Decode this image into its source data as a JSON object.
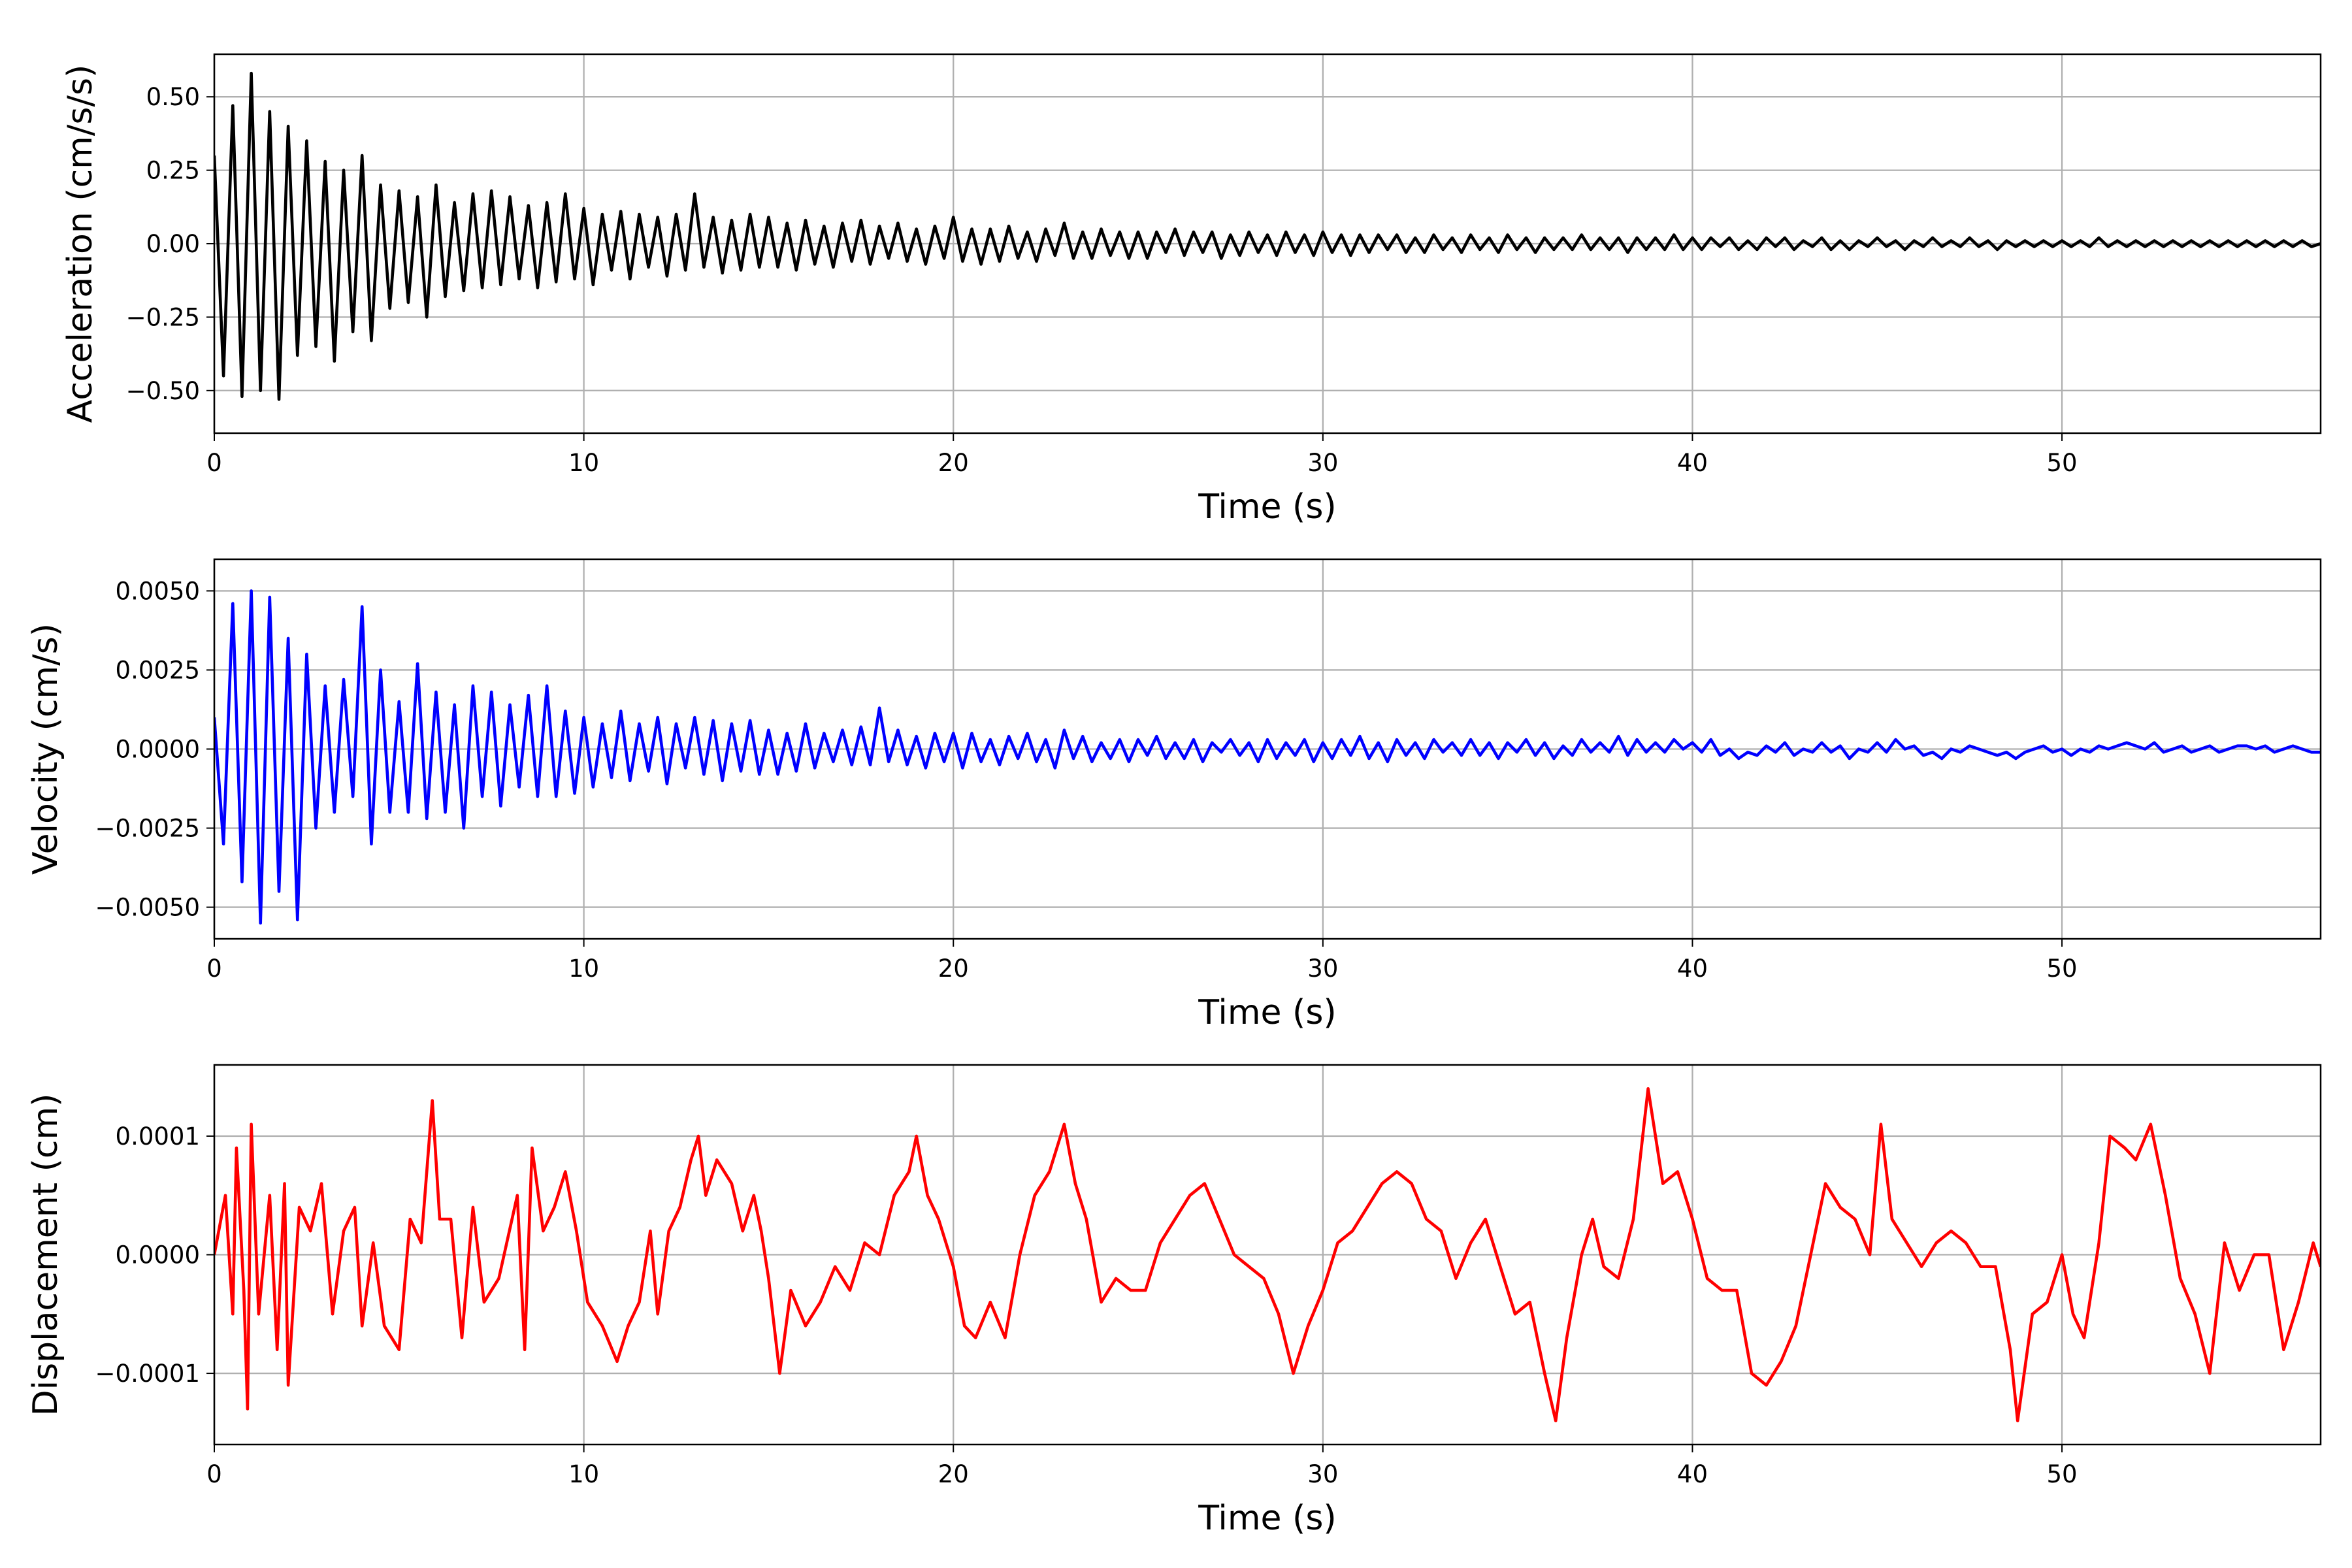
{
  "chart_data": [
    {
      "type": "line",
      "title": "",
      "xlabel": "Time (s)",
      "ylabel": "Acceleration (cm/s/s)",
      "color": "#000000",
      "xlim": [
        0,
        57
      ],
      "ylim": [
        -0.645,
        0.645
      ],
      "grid": true,
      "x_start": 0,
      "x_step": 0.25,
      "value_multiplier": 0.01,
      "values": [
        30,
        -45,
        47,
        -52,
        58,
        -50,
        45,
        -53,
        40,
        -38,
        35,
        -35,
        28,
        -40,
        25,
        -30,
        30,
        -33,
        20,
        -22,
        18,
        -20,
        16,
        -25,
        20,
        -18,
        14,
        -16,
        17,
        -15,
        18,
        -14,
        16,
        -12,
        13,
        -15,
        14,
        -13,
        17,
        -12,
        12,
        -14,
        10,
        -9,
        11,
        -12,
        10,
        -8,
        9,
        -11,
        10,
        -9,
        17,
        -8,
        9,
        -10,
        8,
        -9,
        10,
        -8,
        9,
        -8,
        7,
        -9,
        8,
        -7,
        6,
        -8,
        7,
        -6,
        8,
        -7,
        6,
        -5,
        7,
        -6,
        5,
        -7,
        6,
        -5,
        9,
        -6,
        5,
        -7,
        5,
        -6,
        6,
        -5,
        4,
        -6,
        5,
        -4,
        7,
        -5,
        4,
        -5,
        5,
        -4,
        4,
        -5,
        4,
        -5,
        4,
        -3,
        5,
        -4,
        4,
        -3,
        4,
        -5,
        3,
        -4,
        4,
        -3,
        3,
        -4,
        4,
        -3,
        3,
        -4,
        4,
        -3,
        3,
        -4,
        3,
        -3,
        3,
        -2,
        3,
        -3,
        2,
        -3,
        3,
        -2,
        2,
        -3,
        3,
        -2,
        2,
        -3,
        3,
        -2,
        2,
        -3,
        2,
        -2,
        2,
        -2,
        3,
        -2,
        2,
        -2,
        2,
        -3,
        2,
        -2,
        2,
        -2,
        3,
        -2,
        2,
        -2,
        2,
        -1,
        2,
        -2,
        1,
        -2,
        2,
        -1,
        2,
        -2,
        1,
        -1,
        2,
        -2,
        1,
        -2,
        1,
        -1,
        2,
        -1,
        1,
        -2,
        1,
        -1,
        2,
        -1,
        1,
        -1,
        2,
        -1,
        1,
        -2,
        1,
        -1,
        1,
        -1,
        1,
        -1,
        1,
        -1,
        1,
        -1,
        2,
        -1,
        1,
        -1,
        1,
        -1,
        1,
        -1,
        1,
        -1,
        1,
        -1,
        1,
        -1,
        1,
        -1,
        1,
        -1,
        1,
        -1,
        1,
        -1,
        1,
        -1,
        0
      ],
      "xticks": [
        0,
        10,
        20,
        30,
        40,
        50
      ],
      "xtick_labels": [
        "0",
        "10",
        "20",
        "30",
        "40",
        "50"
      ],
      "yticks": [
        -0.5,
        -0.25,
        0,
        0.25,
        0.5
      ],
      "ytick_labels": [
        "−0.50",
        "−0.25",
        "0.00",
        "0.25",
        "0.50"
      ]
    },
    {
      "type": "line",
      "title": "",
      "xlabel": "Time (s)",
      "ylabel": "Velocity (cm/s)",
      "color": "#0000ff",
      "xlim": [
        0,
        57
      ],
      "ylim": [
        -0.006,
        0.006
      ],
      "grid": true,
      "x_start": 0,
      "x_step": 0.25,
      "value_multiplier": 0.0001,
      "values": [
        10,
        -30,
        46,
        -42,
        50,
        -55,
        48,
        -45,
        35,
        -54,
        30,
        -25,
        20,
        -20,
        22,
        -15,
        45,
        -30,
        25,
        -20,
        15,
        -20,
        27,
        -22,
        18,
        -20,
        14,
        -25,
        20,
        -15,
        18,
        -18,
        14,
        -12,
        17,
        -15,
        20,
        -15,
        12,
        -14,
        10,
        -12,
        8,
        -9,
        12,
        -10,
        8,
        -7,
        10,
        -11,
        8,
        -6,
        10,
        -8,
        9,
        -10,
        8,
        -7,
        9,
        -8,
        6,
        -8,
        5,
        -7,
        8,
        -6,
        5,
        -4,
        6,
        -5,
        7,
        -5,
        13,
        -4,
        6,
        -5,
        4,
        -6,
        5,
        -4,
        5,
        -6,
        5,
        -4,
        3,
        -5,
        4,
        -3,
        5,
        -4,
        3,
        -6,
        6,
        -3,
        4,
        -4,
        2,
        -3,
        3,
        -4,
        3,
        -2,
        4,
        -3,
        2,
        -3,
        3,
        -4,
        2,
        -1,
        3,
        -2,
        2,
        -4,
        3,
        -3,
        2,
        -2,
        3,
        -4,
        2,
        -3,
        3,
        -2,
        4,
        -3,
        2,
        -4,
        3,
        -2,
        2,
        -3,
        3,
        -1,
        2,
        -2,
        3,
        -2,
        2,
        -3,
        2,
        -1,
        3,
        -2,
        2,
        -3,
        1,
        -2,
        3,
        -1,
        2,
        -1,
        4,
        -2,
        3,
        -1,
        2,
        -1,
        3,
        0,
        2,
        -1,
        3,
        -2,
        0,
        -3,
        -1,
        -2,
        1,
        -1,
        2,
        -2,
        0,
        -1,
        2,
        -1,
        1,
        -3,
        0,
        -1,
        2,
        -1,
        3,
        0,
        1,
        -2,
        -1,
        -3,
        0,
        -1,
        1,
        0,
        -1,
        -2,
        -1,
        -3,
        -1,
        0,
        1,
        -1,
        0,
        -2,
        0,
        -1,
        1,
        0,
        1,
        2,
        1,
        0,
        2,
        -1,
        0,
        1,
        -1,
        0,
        1,
        -1,
        0,
        1,
        1,
        0,
        1,
        -1,
        0,
        1,
        0,
        -1,
        -1
      ],
      "xticks": [
        0,
        10,
        20,
        30,
        40,
        50
      ],
      "xtick_labels": [
        "0",
        "10",
        "20",
        "30",
        "40",
        "50"
      ],
      "yticks": [
        -0.005,
        -0.0025,
        0,
        0.0025,
        0.005
      ],
      "ytick_labels": [
        "−0.0050",
        "−0.0025",
        "0.0000",
        "0.0025",
        "0.0050"
      ]
    },
    {
      "type": "line",
      "title": "",
      "xlabel": "Time (s)",
      "ylabel": "Displacement (cm)",
      "color": "#ff0000",
      "xlim": [
        0,
        57
      ],
      "ylim": [
        -0.00016,
        0.00016
      ],
      "grid": true,
      "value_multiplier": 1e-05,
      "x": [
        0,
        0.3,
        0.5,
        0.6,
        0.8,
        0.9,
        1.0,
        1.2,
        1.5,
        1.7,
        1.9,
        2.0,
        2.3,
        2.6,
        2.9,
        3.2,
        3.5,
        3.8,
        4.0,
        4.3,
        4.6,
        5.0,
        5.3,
        5.6,
        5.9,
        6.1,
        6.4,
        6.7,
        7.0,
        7.3,
        7.7,
        8.2,
        8.4,
        8.6,
        8.9,
        9.2,
        9.5,
        9.8,
        10.1,
        10.5,
        10.9,
        11.2,
        11.5,
        11.8,
        12.0,
        12.3,
        12.6,
        12.9,
        13.1,
        13.3,
        13.6,
        14.0,
        14.3,
        14.6,
        14.8,
        15.0,
        15.3,
        15.6,
        16.0,
        16.4,
        16.8,
        17.2,
        17.6,
        18.0,
        18.4,
        18.8,
        19.0,
        19.3,
        19.6,
        20.0,
        20.3,
        20.6,
        21.0,
        21.4,
        21.8,
        22.2,
        22.6,
        23.0,
        23.3,
        23.6,
        24.0,
        24.4,
        24.8,
        25.2,
        25.6,
        26.0,
        26.4,
        26.8,
        27.2,
        27.6,
        28.0,
        28.4,
        28.8,
        29.2,
        29.6,
        30.0,
        30.4,
        30.8,
        31.2,
        31.6,
        32.0,
        32.4,
        32.8,
        33.2,
        33.6,
        34.0,
        34.4,
        34.8,
        35.2,
        35.6,
        36.0,
        36.3,
        36.6,
        37.0,
        37.3,
        37.6,
        38.0,
        38.4,
        38.8,
        39.2,
        39.6,
        40.0,
        40.4,
        40.8,
        41.2,
        41.6,
        42.0,
        42.4,
        42.8,
        43.2,
        43.6,
        44.0,
        44.4,
        44.8,
        45.1,
        45.4,
        45.8,
        46.2,
        46.6,
        47.0,
        47.4,
        47.8,
        48.2,
        48.6,
        48.8,
        49.2,
        49.6,
        50.0,
        50.3,
        50.6,
        51.0,
        51.3,
        51.7,
        52.0,
        52.4,
        52.8,
        53.2,
        53.6,
        54.0,
        54.4,
        54.8,
        55.2,
        55.6,
        56.0,
        56.4,
        56.8,
        57.0
      ],
      "values": [
        0,
        5,
        -5,
        9,
        -3,
        -13,
        11,
        -5,
        5,
        -8,
        6,
        -11,
        4,
        2,
        6,
        -5,
        2,
        4,
        -6,
        1,
        -6,
        -8,
        3,
        1,
        13,
        3,
        3,
        -7,
        4,
        -4,
        -2,
        5,
        -8,
        9,
        2,
        4,
        7,
        2,
        -4,
        -6,
        -9,
        -6,
        -4,
        2,
        -5,
        2,
        4,
        8,
        10,
        5,
        8,
        6,
        2,
        5,
        2,
        -2,
        -10,
        -3,
        -6,
        -4,
        -1,
        -3,
        1,
        0,
        5,
        7,
        10,
        5,
        3,
        -1,
        -6,
        -7,
        -4,
        -7,
        0,
        5,
        7,
        11,
        6,
        3,
        -4,
        -2,
        -3,
        -3,
        1,
        3,
        5,
        6,
        3,
        0,
        -1,
        -2,
        -5,
        -10,
        -6,
        -3,
        1,
        2,
        4,
        6,
        7,
        6,
        3,
        2,
        -2,
        1,
        3,
        -1,
        -5,
        -4,
        -10,
        -14,
        -7,
        0,
        3,
        -1,
        -2,
        3,
        14,
        6,
        7,
        3,
        -2,
        -3,
        -3,
        -10,
        -11,
        -9,
        -6,
        0,
        6,
        4,
        3,
        0,
        11,
        3,
        1,
        -1,
        1,
        2,
        1,
        -1,
        -1,
        -8,
        -14,
        -5,
        -4,
        0,
        -5,
        -7,
        1,
        10,
        9,
        8,
        11,
        5,
        -2,
        -5,
        -10,
        1,
        -3,
        0,
        0,
        -8,
        -4,
        1,
        -1
      ],
      "xticks": [
        0,
        10,
        20,
        30,
        40,
        50
      ],
      "xtick_labels": [
        "0",
        "10",
        "20",
        "30",
        "40",
        "50"
      ],
      "yticks": [
        -0.0001,
        0,
        0.0001
      ],
      "ytick_labels": [
        "−0.0001",
        "0.0000",
        "0.0001"
      ]
    }
  ]
}
